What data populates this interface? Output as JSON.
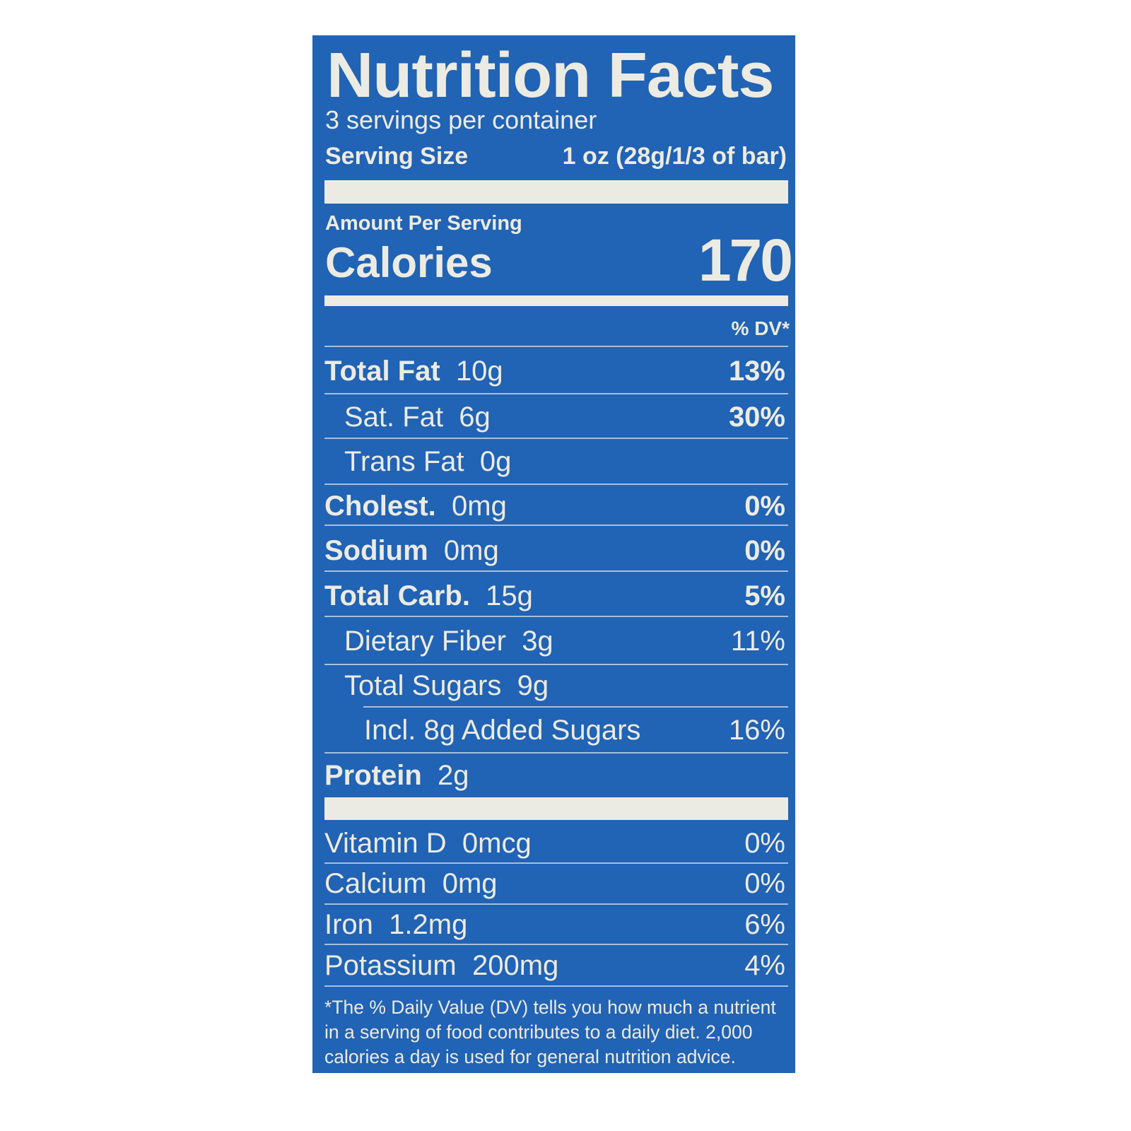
{
  "label": {
    "title": "Nutrition Facts",
    "servings_per_container": "3 servings per container",
    "serving_size_label": "Serving Size",
    "serving_size_value": "1 oz (28g/1/3 of bar)",
    "amount_per_serving": "Amount Per Serving",
    "calories_label": "Calories",
    "calories_value": "170",
    "dv_header": "% DV*",
    "nutrients": [
      {
        "name": "Total Fat",
        "amount": "10g",
        "dv": "13%"
      },
      {
        "name": "Sat. Fat",
        "amount": "6g",
        "dv": "30%"
      },
      {
        "name": "Trans Fat",
        "amount": "0g",
        "dv": ""
      },
      {
        "name": "Cholest.",
        "amount": "0mg",
        "dv": "0%"
      },
      {
        "name": "Sodium",
        "amount": "0mg",
        "dv": "0%"
      },
      {
        "name": "Total Carb.",
        "amount": "15g",
        "dv": "5%"
      },
      {
        "name": "Dietary Fiber",
        "amount": "3g",
        "dv": "11%"
      },
      {
        "name": "Total Sugars",
        "amount": "9g",
        "dv": ""
      },
      {
        "name": "Incl. 8g Added Sugars",
        "amount": "",
        "dv": "16%"
      },
      {
        "name": "Protein",
        "amount": "2g",
        "dv": ""
      }
    ],
    "vitamins": [
      {
        "name": "Vitamin D",
        "amount": "0mcg",
        "dv": "0%"
      },
      {
        "name": "Calcium",
        "amount": "0mg",
        "dv": "0%"
      },
      {
        "name": "Iron",
        "amount": "1.2mg",
        "dv": "6%"
      },
      {
        "name": "Potassium",
        "amount": "200mg",
        "dv": "4%"
      }
    ],
    "footnote_lines": [
      "*The % Daily Value (DV) tells you how much a nutrient",
      "in a serving of food contributes to a daily diet. 2,000",
      "calories a day is used for general nutrition advice."
    ],
    "colors": {
      "background": "#2163b4",
      "text": "#ecebe3"
    }
  }
}
